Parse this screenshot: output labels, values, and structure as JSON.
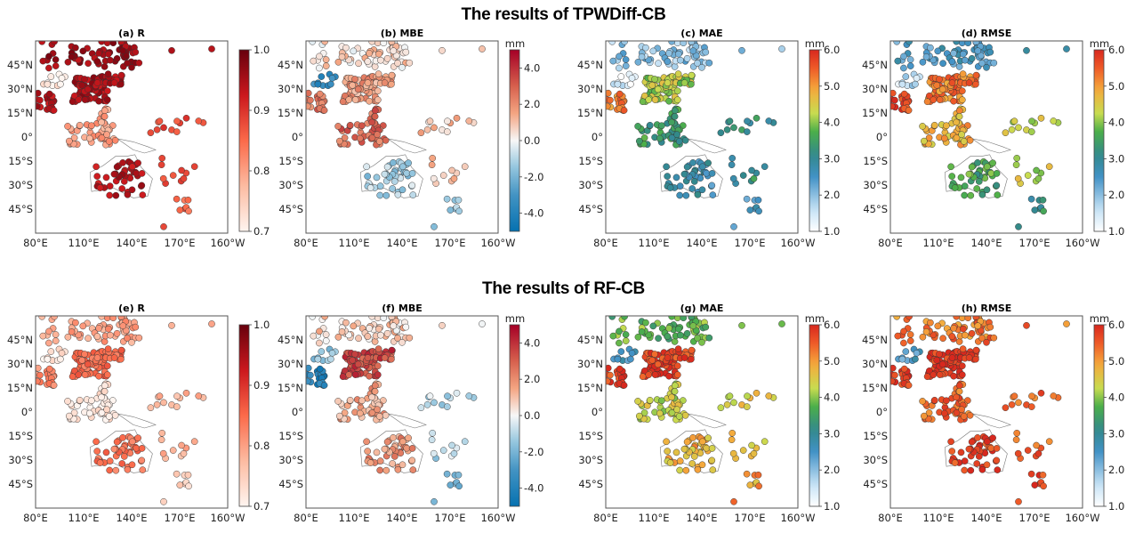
{
  "row_titles": [
    "The results of TPWDiff-CB",
    "The results of RF-CB"
  ],
  "chart_data": {
    "type": "scatter",
    "description": "Station-level evaluation maps over Asia-Pacific",
    "map_extent": {
      "lon": [
        80,
        200
      ],
      "lat": [
        -60,
        60
      ]
    },
    "x_ticks": [
      "80°E",
      "110°E",
      "140°E",
      "170°E",
      "160°W"
    ],
    "x_tick_values": [
      80,
      110,
      140,
      170,
      200
    ],
    "y_ticks": [
      "45°N",
      "30°N",
      "15°N",
      "0°",
      "15°S",
      "30°S",
      "45°S"
    ],
    "y_tick_values": [
      45,
      30,
      15,
      0,
      -15,
      -30,
      -45
    ],
    "colorbars": {
      "R": {
        "unit": "",
        "range": [
          0.7,
          1.0
        ],
        "ticks": [
          "1.0",
          "0.9",
          "0.8",
          "0.7"
        ],
        "tick_values": [
          1.0,
          0.9,
          0.8,
          0.7
        ],
        "cmap": "Reds"
      },
      "MBE": {
        "unit": "mm",
        "range": [
          -5,
          5
        ],
        "ticks": [
          "4.0",
          "2.0",
          "0.0",
          "-2.0",
          "-4.0"
        ],
        "tick_values": [
          4,
          2,
          0,
          -2,
          -4
        ],
        "cmap": "RdBu_r"
      },
      "MAE": {
        "unit": "mm",
        "range": [
          1,
          6
        ],
        "ticks": [
          "6.0",
          "5.0",
          "4.0",
          "3.0",
          "2.0",
          "1.0"
        ],
        "tick_values": [
          6,
          5,
          4,
          3,
          2,
          1
        ],
        "cmap": "Spectral_r"
      },
      "RMSE": {
        "unit": "mm",
        "range": [
          1,
          6
        ],
        "ticks": [
          "6.0",
          "5.0",
          "4.0",
          "3.0",
          "2.0",
          "1.0"
        ],
        "tick_values": [
          6,
          5,
          4,
          3,
          2,
          1
        ],
        "cmap": "Spectral_r"
      }
    },
    "panels": [
      {
        "id": "a",
        "title": "(a) R",
        "metric": "R",
        "model": "TPWDiff-CB",
        "regional_levels": {
          "north_asia": 0.96,
          "china": 0.95,
          "south_asia": 0.94,
          "tibet": 0.72,
          "maritime": 0.8,
          "pacific": 0.88,
          "australia": 0.94,
          "nz": 0.86
        }
      },
      {
        "id": "b",
        "title": "(b) MBE",
        "metric": "MBE",
        "model": "TPWDiff-CB",
        "regional_levels": {
          "north_asia": 0.6,
          "china": 1.6,
          "south_asia": 2.5,
          "tibet": -3.5,
          "maritime": 2.8,
          "pacific": 1.0,
          "australia": -1.2,
          "nz": -1.0
        }
      },
      {
        "id": "c",
        "title": "(c) MAE",
        "metric": "MAE",
        "model": "TPWDiff-CB",
        "regional_levels": {
          "north_asia": 2.0,
          "china": 4.2,
          "south_asia": 5.3,
          "tibet": 1.3,
          "maritime": 3.4,
          "pacific": 3.2,
          "australia": 2.7,
          "nz": 2.5
        }
      },
      {
        "id": "d",
        "title": "(d) RMSE",
        "metric": "RMSE",
        "model": "TPWDiff-CB",
        "regional_levels": {
          "north_asia": 2.5,
          "china": 5.3,
          "south_asia": 5.8,
          "tibet": 1.6,
          "maritime": 4.8,
          "pacific": 4.3,
          "australia": 3.6,
          "nz": 3.2
        }
      },
      {
        "id": "e",
        "title": "(e) R",
        "metric": "R",
        "model": "RF-CB",
        "regional_levels": {
          "north_asia": 0.8,
          "china": 0.85,
          "south_asia": 0.82,
          "tibet": 0.72,
          "maritime": 0.72,
          "pacific": 0.78,
          "australia": 0.84,
          "nz": 0.74
        }
      },
      {
        "id": "f",
        "title": "(f) MBE",
        "metric": "MBE",
        "model": "RF-CB",
        "regional_levels": {
          "north_asia": 0.8,
          "china": 3.5,
          "south_asia": -4.0,
          "tibet": -1.5,
          "maritime": 1.5,
          "pacific": -1.0,
          "australia": 1.8,
          "nz": -2.5
        }
      },
      {
        "id": "g",
        "title": "(g) MAE",
        "metric": "MAE",
        "model": "RF-CB",
        "regional_levels": {
          "north_asia": 3.8,
          "china": 5.8,
          "south_asia": 5.8,
          "tibet": 2.6,
          "maritime": 4.3,
          "pacific": 4.5,
          "australia": 4.8,
          "nz": 5.0
        }
      },
      {
        "id": "h",
        "title": "(h) RMSE",
        "metric": "RMSE",
        "model": "RF-CB",
        "regional_levels": {
          "north_asia": 5.3,
          "china": 5.9,
          "south_asia": 5.9,
          "tibet": 2.5,
          "maritime": 5.4,
          "pacific": 5.5,
          "australia": 5.8,
          "nz": 5.8
        }
      }
    ]
  }
}
